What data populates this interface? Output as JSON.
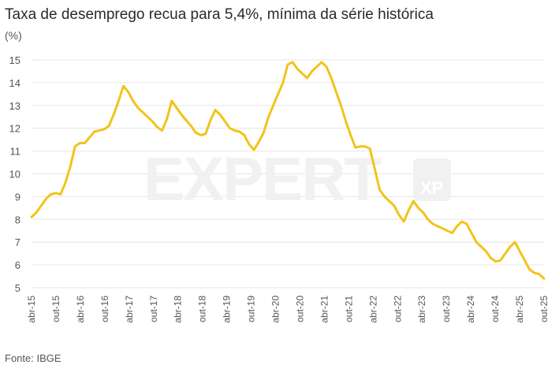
{
  "chart_data": {
    "type": "line",
    "title": "Taxa de desemprego recua para 5,4%, mínima da série histórica",
    "ylabel": "(%)",
    "source": "Fonte: IBGE",
    "ylim": [
      5,
      15
    ],
    "yticks": [
      5,
      6,
      7,
      8,
      9,
      10,
      11,
      12,
      13,
      14,
      15
    ],
    "grid": "horizontal",
    "color": "#f2c31b",
    "watermark": "EXPERT XP",
    "xticks": [
      "abr-15",
      "out-15",
      "abr-16",
      "out-16",
      "abr-17",
      "out-17",
      "abr-18",
      "out-18",
      "abr-19",
      "out-19",
      "abr-20",
      "out-20",
      "abr-21",
      "out-21",
      "abr-22",
      "out-22",
      "abr-23",
      "out-23",
      "abr-24",
      "out-24",
      "abr-25",
      "out-25"
    ],
    "x_start": "abr-15",
    "x_end": "out-25",
    "values": [
      8.1,
      8.3,
      8.6,
      8.9,
      9.1,
      9.15,
      9.1,
      9.6,
      10.3,
      11.2,
      11.35,
      11.35,
      11.6,
      11.85,
      11.9,
      11.95,
      12.1,
      12.6,
      13.2,
      13.85,
      13.6,
      13.2,
      12.9,
      12.7,
      12.5,
      12.3,
      12.05,
      11.9,
      12.4,
      13.2,
      12.9,
      12.6,
      12.35,
      12.1,
      11.8,
      11.7,
      11.75,
      12.35,
      12.8,
      12.6,
      12.3,
      12.0,
      11.9,
      11.85,
      11.7,
      11.3,
      11.05,
      11.4,
      11.8,
      12.5,
      13.0,
      13.5,
      14.0,
      14.8,
      14.9,
      14.6,
      14.4,
      14.2,
      14.5,
      14.7,
      14.9,
      14.7,
      14.2,
      13.6,
      13.0,
      12.3,
      11.7,
      11.15,
      11.2,
      11.2,
      11.1,
      10.2,
      9.3,
      9.0,
      8.8,
      8.6,
      8.2,
      7.9,
      8.4,
      8.8,
      8.5,
      8.3,
      8.0,
      7.8,
      7.7,
      7.6,
      7.5,
      7.4,
      7.7,
      7.9,
      7.8,
      7.4,
      7.0,
      6.8,
      6.6,
      6.3,
      6.15,
      6.2,
      6.5,
      6.8,
      7.0,
      6.6,
      6.2,
      5.8,
      5.65,
      5.6,
      5.4
    ]
  }
}
